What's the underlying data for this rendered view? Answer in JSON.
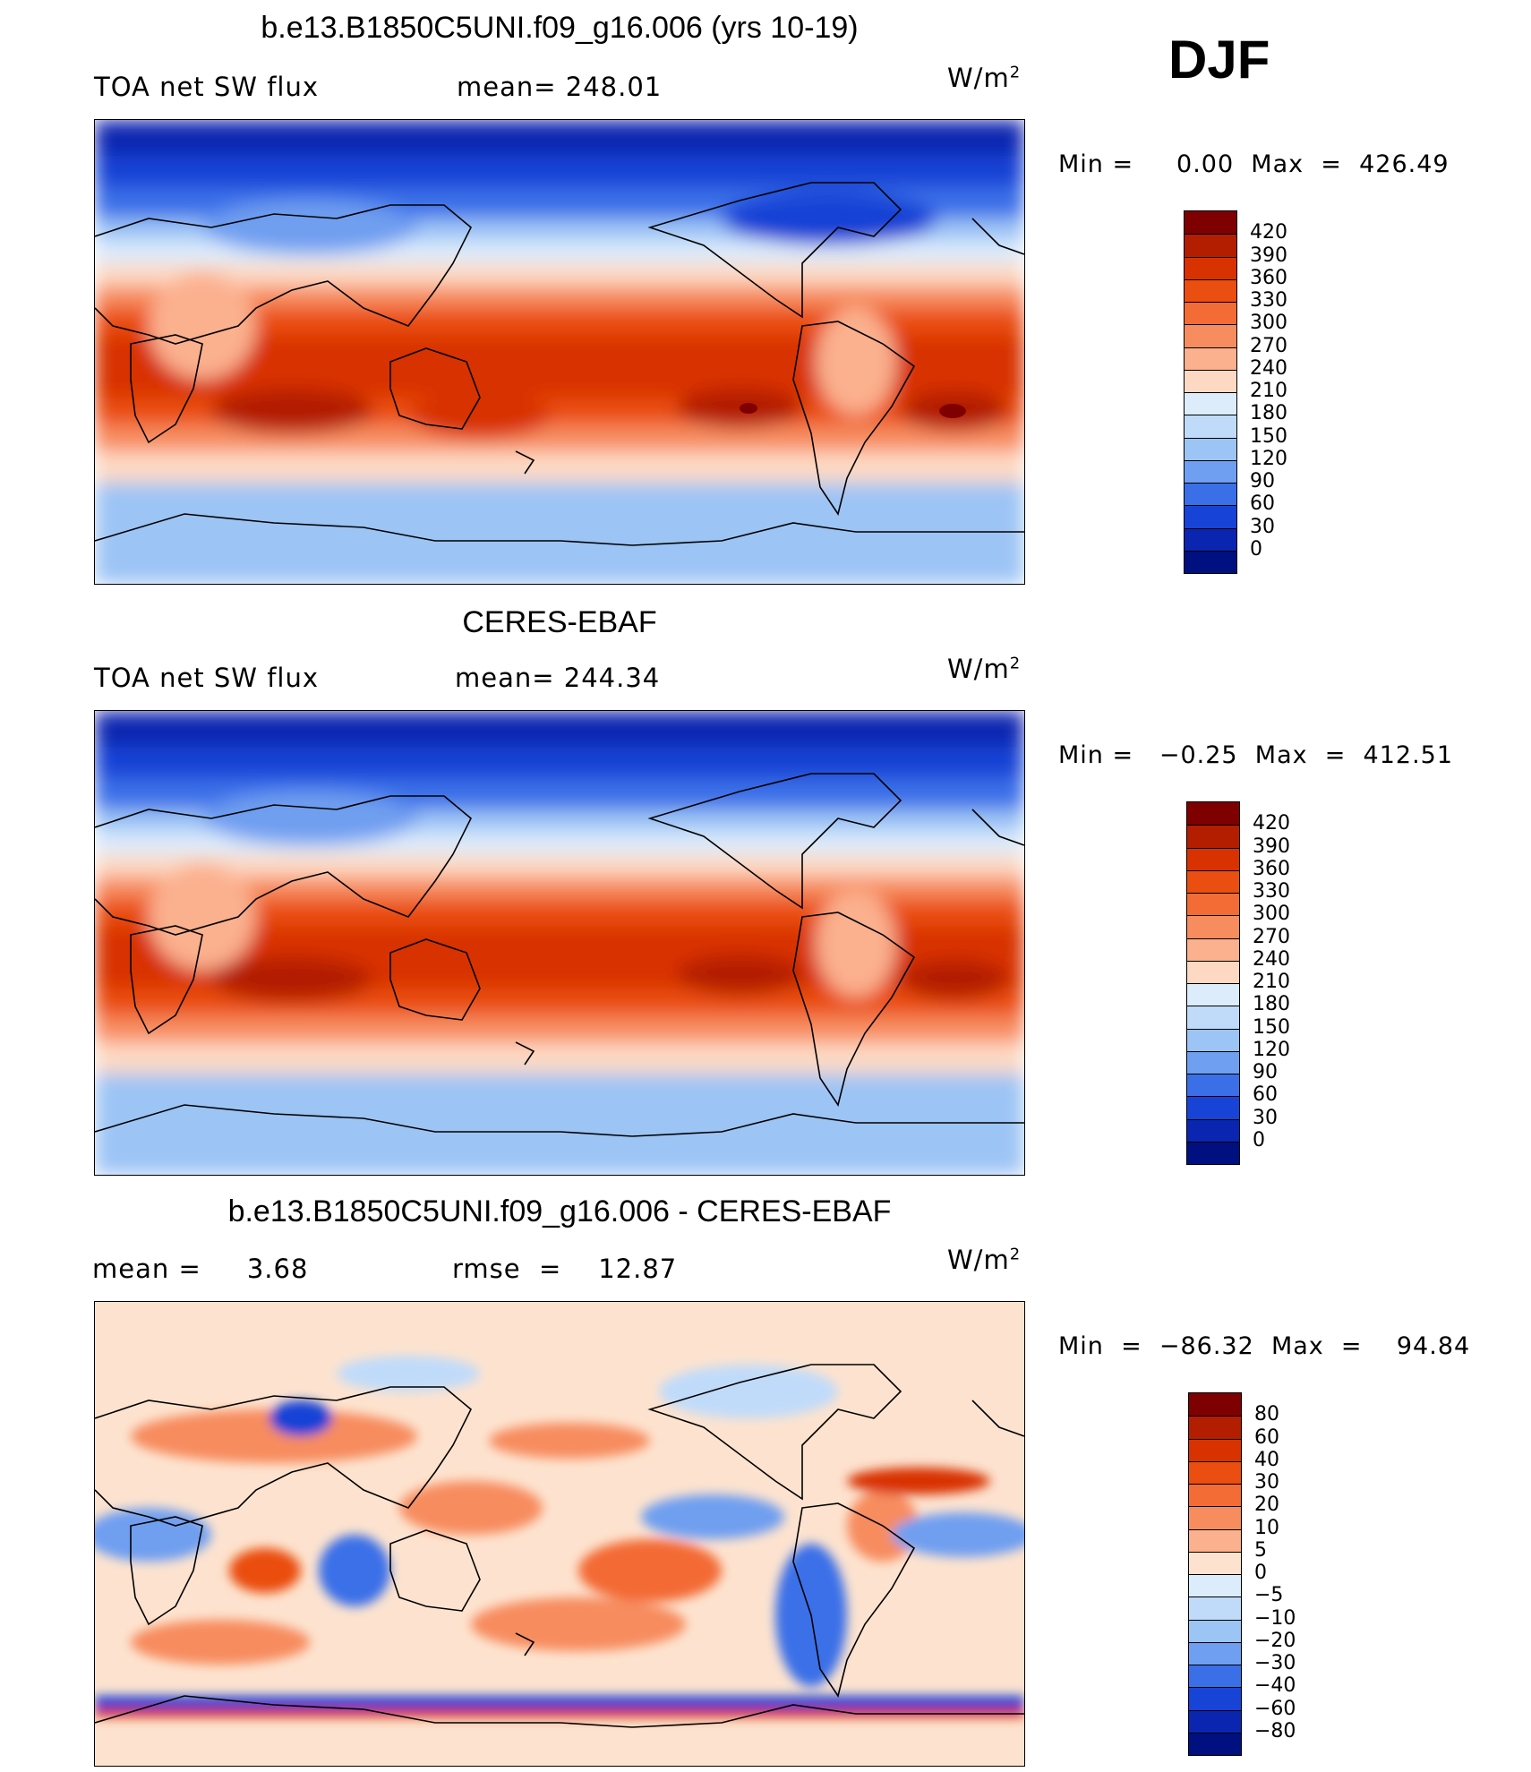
{
  "season": "DJF",
  "panels": [
    {
      "title": "b.e13.B1850C5UNI.f09_g16.006 (yrs 10-19)",
      "left_label": "TOA net SW flux",
      "mid_label": "mean= 248.01",
      "units_base": "W/m",
      "units_exp": "2",
      "minmax": "Min =     0.00  Max  =  426.49",
      "colorbar": {
        "labels": [
          "420",
          "390",
          "360",
          "330",
          "300",
          "270",
          "240",
          "210",
          "180",
          "150",
          "120",
          "90",
          "60",
          "30",
          "0"
        ],
        "colors": [
          "#7f0000",
          "#b31e00",
          "#d83200",
          "#ea4e10",
          "#f36b35",
          "#f78c5f",
          "#fbb08e",
          "#fdd9c3",
          "#dcecfb",
          "#c0dbfa",
          "#9cc4f5",
          "#6f9ff0",
          "#3b6fe8",
          "#1743d6",
          "#0a25b0",
          "#001080"
        ]
      }
    },
    {
      "title": "CERES-EBAF",
      "left_label": "TOA net SW flux",
      "mid_label": "mean= 244.34",
      "units_base": "W/m",
      "units_exp": "2",
      "minmax": "Min =   −0.25  Max  =  412.51",
      "colorbar": {
        "labels": [
          "420",
          "390",
          "360",
          "330",
          "300",
          "270",
          "240",
          "210",
          "180",
          "150",
          "120",
          "90",
          "60",
          "30",
          "0"
        ],
        "colors": [
          "#7f0000",
          "#b31e00",
          "#d83200",
          "#ea4e10",
          "#f36b35",
          "#f78c5f",
          "#fbb08e",
          "#fdd9c3",
          "#dcecfb",
          "#c0dbfa",
          "#9cc4f5",
          "#6f9ff0",
          "#3b6fe8",
          "#1743d6",
          "#0a25b0",
          "#001080"
        ]
      }
    },
    {
      "title": "b.e13.B1850C5UNI.f09_g16.006 - CERES-EBAF",
      "left_label": "mean =     3.68",
      "mid_label": "rmse  =    12.87",
      "units_base": "W/m",
      "units_exp": "2",
      "minmax": "Min  =  −86.32  Max  =    94.84",
      "colorbar": {
        "labels": [
          "80",
          "60",
          "40",
          "30",
          "20",
          "10",
          "5",
          "0",
          "−5",
          "−10",
          "−20",
          "−30",
          "−40",
          "−60",
          "−80"
        ],
        "colors": [
          "#7f0000",
          "#b31e00",
          "#d83200",
          "#ea4e10",
          "#f36b35",
          "#f78c5f",
          "#fbb08e",
          "#fde3cf",
          "#dcecfb",
          "#c0dbfa",
          "#9cc4f5",
          "#6f9ff0",
          "#3b6fe8",
          "#1743d6",
          "#0a25b0",
          "#001080"
        ]
      }
    }
  ]
}
